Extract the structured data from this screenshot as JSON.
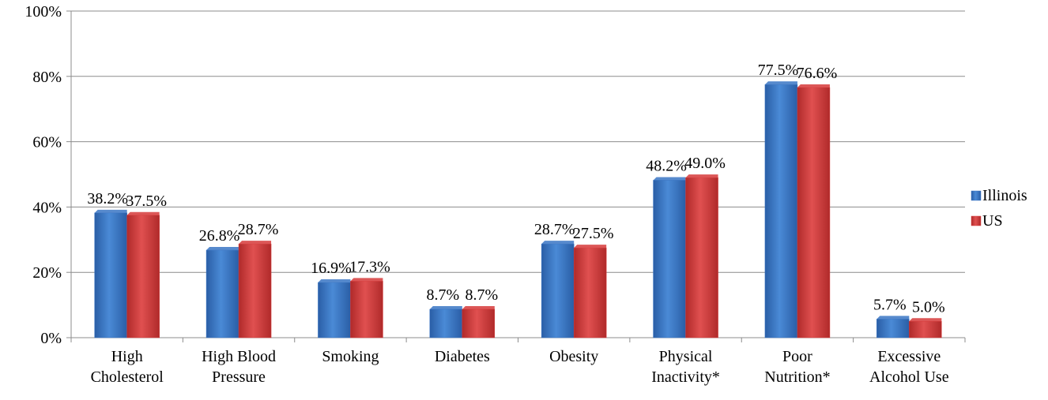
{
  "chart_data": {
    "type": "bar",
    "categories": [
      [
        "High",
        "Cholesterol"
      ],
      [
        "High Blood",
        "Pressure"
      ],
      [
        "Smoking"
      ],
      [
        "Diabetes"
      ],
      [
        "Obesity"
      ],
      [
        "Physical",
        "Inactivity*"
      ],
      [
        "Poor",
        "Nutrition*"
      ],
      [
        "Excessive",
        "Alcohol Use"
      ]
    ],
    "series": [
      {
        "name": "Illinois",
        "color": "#3a75c4",
        "values": [
          38.2,
          26.8,
          16.9,
          8.7,
          28.7,
          48.2,
          77.5,
          5.7
        ],
        "labels": [
          "38.2%",
          "26.8%",
          "16.9%",
          "8.7%",
          "28.7%",
          "48.2%",
          "77.5%",
          "5.7%"
        ]
      },
      {
        "name": "US",
        "color": "#d63a3a",
        "values": [
          37.5,
          28.7,
          17.3,
          8.7,
          27.5,
          49.0,
          76.6,
          5.0
        ],
        "labels": [
          "37.5%",
          "28.7%",
          "17.3%",
          "8.7%",
          "27.5%",
          "49.0%",
          "76.6%",
          "5.0%"
        ]
      }
    ],
    "y_ticks": [
      "0%",
      "20%",
      "40%",
      "60%",
      "80%",
      "100%"
    ],
    "ylim": [
      0,
      100
    ],
    "grid": true,
    "legend_position": "right",
    "title": "",
    "xlabel": "",
    "ylabel": ""
  }
}
